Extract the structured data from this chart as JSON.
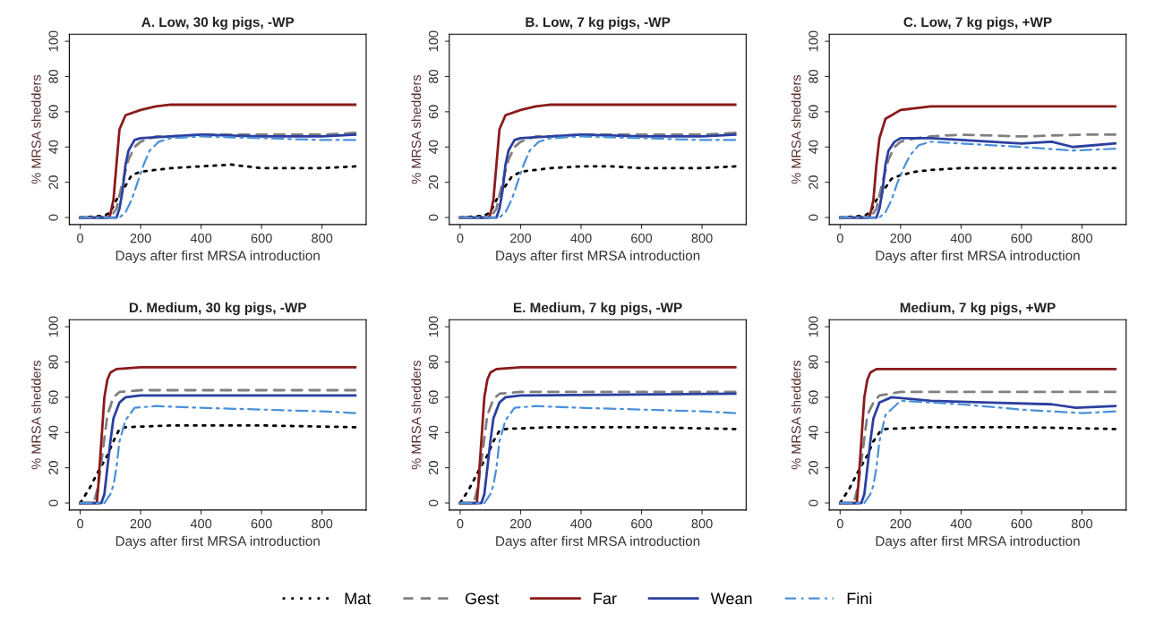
{
  "chart_data": [
    {
      "type": "line",
      "title": "A. Low, 30 kg pigs, -WP",
      "xlabel": "Days after first MRSA introduction",
      "ylabel": "% MRSA shedders",
      "xlim": [
        -36,
        946
      ],
      "ylim": [
        -4,
        104
      ],
      "xticks": [
        0,
        200,
        400,
        600,
        800
      ],
      "yticks": [
        0,
        20,
        40,
        60,
        80,
        100
      ],
      "grid": false,
      "legend": "bottom",
      "series": [
        {
          "name": "Mat",
          "color": "#000000",
          "line_style": "dotted",
          "x": [
            0,
            80,
            100,
            120,
            150,
            170,
            200,
            250,
            300,
            400,
            500,
            600,
            700,
            800,
            910
          ],
          "values": [
            0,
            1,
            3,
            10,
            18,
            24,
            26,
            27,
            28,
            29,
            30,
            28,
            28,
            28,
            29
          ]
        },
        {
          "name": "Gest",
          "color": "#808080",
          "line_style": "dashed",
          "x": [
            0,
            100,
            120,
            140,
            160,
            180,
            200,
            250,
            300,
            400,
            600,
            800,
            910
          ],
          "values": [
            0,
            0,
            5,
            20,
            33,
            40,
            43,
            46,
            46,
            47,
            47,
            47,
            48
          ]
        },
        {
          "name": "Far",
          "color": "#8b1a1a",
          "line_style": "solid",
          "x": [
            0,
            95,
            100,
            110,
            120,
            130,
            150,
            200,
            250,
            300,
            400,
            600,
            800,
            910
          ],
          "values": [
            0,
            0,
            2,
            10,
            30,
            50,
            58,
            61,
            63,
            64,
            64,
            64,
            64,
            64
          ]
        },
        {
          "name": "Wean",
          "color": "#2b3fa0",
          "line_style": "solid",
          "x": [
            0,
            120,
            130,
            140,
            150,
            160,
            180,
            200,
            300,
            400,
            600,
            800,
            910
          ],
          "values": [
            0,
            0,
            5,
            15,
            30,
            38,
            44,
            45,
            46,
            47,
            46,
            46,
            47
          ]
        },
        {
          "name": "Fini",
          "color": "#4a90d9",
          "line_style": "dashdot",
          "x": [
            0,
            130,
            150,
            170,
            190,
            210,
            230,
            260,
            300,
            400,
            600,
            800,
            910
          ],
          "values": [
            0,
            0,
            3,
            10,
            20,
            30,
            38,
            43,
            45,
            46,
            45,
            44,
            44
          ]
        }
      ]
    },
    {
      "type": "line",
      "title": "B. Low, 7 kg pigs, -WP",
      "xlabel": "Days after first MRSA introduction",
      "ylabel": "% MRSA shedders",
      "xlim": [
        -36,
        946
      ],
      "ylim": [
        -4,
        104
      ],
      "xticks": [
        0,
        200,
        400,
        600,
        800
      ],
      "yticks": [
        0,
        20,
        40,
        60,
        80,
        100
      ],
      "grid": false,
      "legend": "bottom",
      "series": [
        {
          "name": "Mat",
          "color": "#000000",
          "line_style": "dotted",
          "x": [
            0,
            80,
            100,
            120,
            150,
            170,
            200,
            250,
            300,
            400,
            500,
            600,
            700,
            800,
            910
          ],
          "values": [
            0,
            1,
            3,
            10,
            18,
            23,
            26,
            27,
            28,
            29,
            29,
            28,
            28,
            28,
            29
          ]
        },
        {
          "name": "Gest",
          "color": "#808080",
          "line_style": "dashed",
          "x": [
            0,
            100,
            120,
            140,
            160,
            180,
            200,
            250,
            300,
            400,
            600,
            800,
            910
          ],
          "values": [
            0,
            0,
            5,
            20,
            33,
            40,
            43,
            46,
            46,
            47,
            47,
            47,
            48
          ]
        },
        {
          "name": "Far",
          "color": "#8b1a1a",
          "line_style": "solid",
          "x": [
            0,
            95,
            100,
            110,
            120,
            130,
            150,
            200,
            250,
            300,
            400,
            600,
            800,
            910
          ],
          "values": [
            0,
            0,
            2,
            10,
            30,
            50,
            58,
            61,
            63,
            64,
            64,
            64,
            64,
            64
          ]
        },
        {
          "name": "Wean",
          "color": "#2b3fa0",
          "line_style": "solid",
          "x": [
            0,
            120,
            130,
            140,
            150,
            160,
            180,
            200,
            300,
            400,
            600,
            800,
            910
          ],
          "values": [
            0,
            0,
            5,
            15,
            30,
            38,
            44,
            45,
            46,
            47,
            46,
            46,
            47
          ]
        },
        {
          "name": "Fini",
          "color": "#4a90d9",
          "line_style": "dashdot",
          "x": [
            0,
            130,
            150,
            170,
            190,
            210,
            230,
            260,
            300,
            400,
            600,
            800,
            910
          ],
          "values": [
            0,
            0,
            3,
            10,
            20,
            30,
            38,
            43,
            45,
            46,
            45,
            44,
            44
          ]
        }
      ]
    },
    {
      "type": "line",
      "title": "C. Low, 7 kg pigs, +WP",
      "xlabel": "Days after first MRSA introduction",
      "ylabel": "% MRSA shedders",
      "xlim": [
        -36,
        946
      ],
      "ylim": [
        -4,
        104
      ],
      "xticks": [
        0,
        200,
        400,
        600,
        800
      ],
      "yticks": [
        0,
        20,
        40,
        60,
        80,
        100
      ],
      "grid": false,
      "legend": "bottom",
      "series": [
        {
          "name": "Mat",
          "color": "#000000",
          "line_style": "dotted",
          "x": [
            0,
            80,
            100,
            120,
            150,
            170,
            200,
            250,
            300,
            400,
            500,
            600,
            700,
            800,
            910
          ],
          "values": [
            0,
            1,
            3,
            10,
            17,
            22,
            24,
            26,
            27,
            28,
            28,
            28,
            28,
            28,
            28
          ]
        },
        {
          "name": "Gest",
          "color": "#808080",
          "line_style": "dashed",
          "x": [
            0,
            100,
            120,
            140,
            160,
            180,
            200,
            250,
            300,
            400,
            600,
            800,
            910
          ],
          "values": [
            0,
            0,
            5,
            20,
            33,
            40,
            43,
            45,
            46,
            47,
            46,
            47,
            47
          ]
        },
        {
          "name": "Far",
          "color": "#8b1a1a",
          "line_style": "solid",
          "x": [
            0,
            95,
            100,
            110,
            120,
            130,
            150,
            200,
            250,
            300,
            400,
            600,
            800,
            910
          ],
          "values": [
            0,
            0,
            2,
            10,
            30,
            45,
            56,
            61,
            62,
            63,
            63,
            63,
            63,
            63
          ]
        },
        {
          "name": "Wean",
          "color": "#2b3fa0",
          "line_style": "solid",
          "x": [
            0,
            120,
            130,
            140,
            150,
            160,
            180,
            200,
            300,
            400,
            500,
            600,
            700,
            770,
            910
          ],
          "values": [
            0,
            0,
            5,
            15,
            30,
            38,
            43,
            45,
            45,
            44,
            43,
            42,
            43,
            40,
            42
          ]
        },
        {
          "name": "Fini",
          "color": "#4a90d9",
          "line_style": "dashdot",
          "x": [
            0,
            130,
            150,
            170,
            190,
            210,
            230,
            260,
            300,
            400,
            600,
            770,
            910
          ],
          "values": [
            0,
            0,
            3,
            10,
            20,
            28,
            35,
            41,
            43,
            42,
            40,
            38,
            39
          ]
        }
      ]
    },
    {
      "type": "line",
      "title": "D. Medium, 30 kg pigs, -WP",
      "xlabel": "Days after first MRSA introduction",
      "ylabel": "% MRSA shedders",
      "xlim": [
        -36,
        946
      ],
      "ylim": [
        -4,
        104
      ],
      "xticks": [
        0,
        200,
        400,
        600,
        800
      ],
      "yticks": [
        0,
        20,
        40,
        60,
        80,
        100
      ],
      "grid": false,
      "legend": "bottom",
      "series": [
        {
          "name": "Mat",
          "color": "#000000",
          "line_style": "dotted",
          "x": [
            0,
            30,
            60,
            90,
            110,
            130,
            150,
            300,
            600,
            910
          ],
          "values": [
            0,
            8,
            18,
            27,
            35,
            42,
            43,
            44,
            44,
            43
          ]
        },
        {
          "name": "Gest",
          "color": "#808080",
          "line_style": "dashed",
          "x": [
            0,
            45,
            60,
            75,
            90,
            110,
            130,
            200,
            400,
            600,
            910
          ],
          "values": [
            0,
            0,
            10,
            30,
            50,
            60,
            63,
            64,
            64,
            64,
            64
          ]
        },
        {
          "name": "Far",
          "color": "#8b1a1a",
          "line_style": "solid",
          "x": [
            0,
            55,
            60,
            70,
            80,
            90,
            100,
            120,
            200,
            910
          ],
          "values": [
            0,
            0,
            10,
            35,
            60,
            70,
            74,
            76,
            77,
            77
          ]
        },
        {
          "name": "Wean",
          "color": "#2b3fa0",
          "line_style": "solid",
          "x": [
            0,
            70,
            80,
            90,
            100,
            110,
            130,
            150,
            200,
            910
          ],
          "values": [
            0,
            0,
            5,
            20,
            35,
            48,
            57,
            60,
            61,
            61
          ]
        },
        {
          "name": "Fini",
          "color": "#4a90d9",
          "line_style": "dashdot",
          "x": [
            0,
            80,
            100,
            110,
            120,
            130,
            150,
            180,
            250,
            400,
            600,
            800,
            910
          ],
          "values": [
            0,
            0,
            5,
            10,
            20,
            35,
            47,
            54,
            55,
            54,
            53,
            52,
            51
          ]
        }
      ]
    },
    {
      "type": "line",
      "title": "E. Medium, 7 kg pigs, -WP",
      "xlabel": "Days after first MRSA introduction",
      "ylabel": "% MRSA shedders",
      "xlim": [
        -36,
        946
      ],
      "ylim": [
        -4,
        104
      ],
      "xticks": [
        0,
        200,
        400,
        600,
        800
      ],
      "yticks": [
        0,
        20,
        40,
        60,
        80,
        100
      ],
      "grid": false,
      "legend": "bottom",
      "series": [
        {
          "name": "Mat",
          "color": "#000000",
          "line_style": "dotted",
          "x": [
            0,
            30,
            60,
            90,
            110,
            130,
            150,
            300,
            600,
            910
          ],
          "values": [
            0,
            8,
            18,
            27,
            35,
            41,
            42,
            43,
            43,
            42
          ]
        },
        {
          "name": "Gest",
          "color": "#808080",
          "line_style": "dashed",
          "x": [
            0,
            45,
            60,
            75,
            90,
            110,
            130,
            200,
            400,
            600,
            910
          ],
          "values": [
            0,
            0,
            10,
            30,
            50,
            59,
            62,
            63,
            63,
            63,
            63
          ]
        },
        {
          "name": "Far",
          "color": "#8b1a1a",
          "line_style": "solid",
          "x": [
            0,
            55,
            60,
            70,
            80,
            90,
            100,
            120,
            200,
            910
          ],
          "values": [
            0,
            0,
            10,
            35,
            60,
            70,
            74,
            76,
            77,
            77
          ]
        },
        {
          "name": "Wean",
          "color": "#2b3fa0",
          "line_style": "solid",
          "x": [
            0,
            70,
            80,
            90,
            100,
            110,
            130,
            150,
            200,
            910
          ],
          "values": [
            0,
            0,
            5,
            20,
            35,
            48,
            57,
            60,
            61,
            62
          ]
        },
        {
          "name": "Fini",
          "color": "#4a90d9",
          "line_style": "dashdot",
          "x": [
            0,
            80,
            100,
            110,
            120,
            130,
            150,
            180,
            250,
            400,
            600,
            800,
            910
          ],
          "values": [
            0,
            0,
            5,
            10,
            20,
            35,
            47,
            54,
            55,
            54,
            53,
            52,
            51
          ]
        }
      ]
    },
    {
      "type": "line",
      "title": "Medium, 7 kg pigs, +WP",
      "xlabel": "Days after first MRSA introduction",
      "ylabel": "% MRSA shedders",
      "xlim": [
        -36,
        946
      ],
      "ylim": [
        -4,
        104
      ],
      "xticks": [
        0,
        200,
        400,
        600,
        800
      ],
      "yticks": [
        0,
        20,
        40,
        60,
        80,
        100
      ],
      "grid": false,
      "legend": "bottom",
      "series": [
        {
          "name": "Mat",
          "color": "#000000",
          "line_style": "dotted",
          "x": [
            0,
            30,
            60,
            90,
            110,
            130,
            150,
            300,
            600,
            910
          ],
          "values": [
            0,
            8,
            18,
            27,
            35,
            40,
            42,
            43,
            43,
            42
          ]
        },
        {
          "name": "Gest",
          "color": "#808080",
          "line_style": "dashed",
          "x": [
            0,
            45,
            60,
            75,
            90,
            110,
            130,
            200,
            400,
            600,
            910
          ],
          "values": [
            0,
            0,
            10,
            30,
            50,
            57,
            61,
            63,
            63,
            63,
            63
          ]
        },
        {
          "name": "Far",
          "color": "#8b1a1a",
          "line_style": "solid",
          "x": [
            0,
            55,
            60,
            70,
            80,
            90,
            100,
            120,
            200,
            910
          ],
          "values": [
            0,
            0,
            10,
            35,
            60,
            70,
            74,
            76,
            76,
            76
          ]
        },
        {
          "name": "Wean",
          "color": "#2b3fa0",
          "line_style": "solid",
          "x": [
            0,
            70,
            80,
            90,
            100,
            110,
            130,
            170,
            300,
            500,
            700,
            780,
            910
          ],
          "values": [
            0,
            0,
            5,
            20,
            35,
            48,
            57,
            60,
            58,
            57,
            56,
            54,
            55
          ]
        },
        {
          "name": "Fini",
          "color": "#4a90d9",
          "line_style": "dashdot",
          "x": [
            0,
            80,
            100,
            110,
            120,
            130,
            150,
            200,
            400,
            600,
            800,
            910
          ],
          "values": [
            0,
            0,
            5,
            10,
            20,
            35,
            50,
            58,
            56,
            53,
            51,
            52
          ]
        }
      ]
    }
  ]
}
